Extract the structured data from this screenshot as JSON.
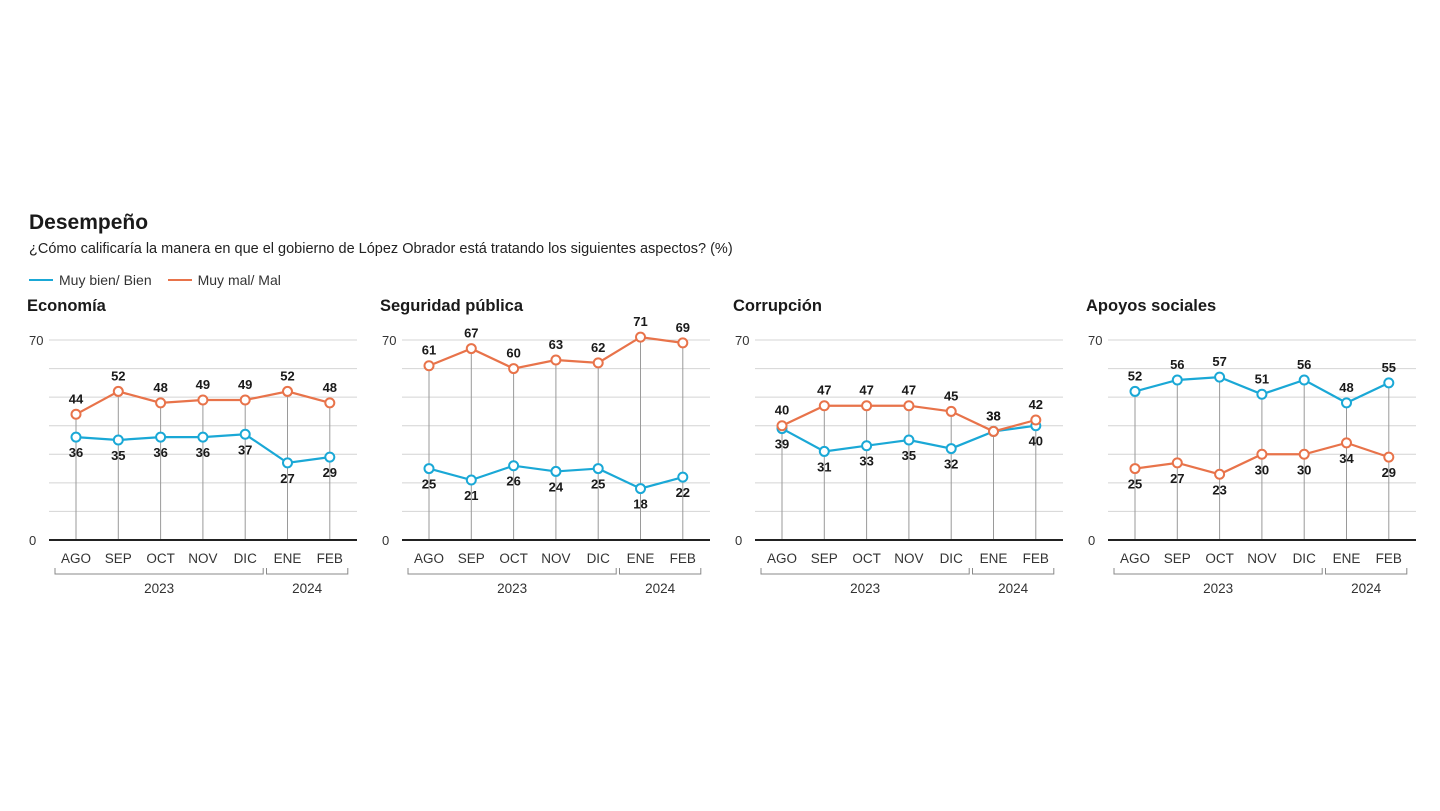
{
  "header": {
    "title": "Desempeño",
    "subtitle": "¿Cómo calificaría la manera en que el gobierno de López Obrador está tratando los siguientes aspectos? (%)"
  },
  "legend": [
    {
      "label": "Muy bien/ Bien",
      "color": "#1aa8d6"
    },
    {
      "label": "Muy mal/ Mal",
      "color": "#e8734a"
    }
  ],
  "colors": {
    "positive": "#1aa8d6",
    "negative": "#e8734a",
    "grid": "#d4d4d4",
    "axis": "#222222"
  },
  "chart_data": [
    {
      "type": "line",
      "title": "Economía",
      "categories": [
        "AGO",
        "SEP",
        "OCT",
        "NOV",
        "DIC",
        "ENE",
        "FEB"
      ],
      "year_groups": [
        {
          "label": "2023",
          "categories": [
            "AGO",
            "SEP",
            "OCT",
            "NOV",
            "DIC"
          ]
        },
        {
          "label": "2024",
          "categories": [
            "ENE",
            "FEB"
          ]
        }
      ],
      "ylim": [
        0,
        70
      ],
      "yticks": [
        "0",
        "70"
      ],
      "grid": true,
      "series": [
        {
          "name": "Muy bien/ Bien",
          "values": [
            36,
            35,
            36,
            36,
            37,
            27,
            29
          ]
        },
        {
          "name": "Muy mal/ Mal",
          "values": [
            44,
            52,
            48,
            49,
            49,
            52,
            48
          ]
        }
      ]
    },
    {
      "type": "line",
      "title": "Seguridad pública",
      "categories": [
        "AGO",
        "SEP",
        "OCT",
        "NOV",
        "DIC",
        "ENE",
        "FEB"
      ],
      "year_groups": [
        {
          "label": "2023",
          "categories": [
            "AGO",
            "SEP",
            "OCT",
            "NOV",
            "DIC"
          ]
        },
        {
          "label": "2024",
          "categories": [
            "ENE",
            "FEB"
          ]
        }
      ],
      "ylim": [
        0,
        70
      ],
      "yticks": [
        "0",
        "70"
      ],
      "grid": true,
      "series": [
        {
          "name": "Muy bien/ Bien",
          "values": [
            25,
            21,
            26,
            24,
            25,
            18,
            22
          ]
        },
        {
          "name": "Muy mal/ Mal",
          "values": [
            61,
            67,
            60,
            63,
            62,
            71,
            69
          ]
        }
      ]
    },
    {
      "type": "line",
      "title": "Corrupción",
      "categories": [
        "AGO",
        "SEP",
        "OCT",
        "NOV",
        "DIC",
        "ENE",
        "FEB"
      ],
      "year_groups": [
        {
          "label": "2023",
          "categories": [
            "AGO",
            "SEP",
            "OCT",
            "NOV",
            "DIC"
          ]
        },
        {
          "label": "2024",
          "categories": [
            "ENE",
            "FEB"
          ]
        }
      ],
      "ylim": [
        0,
        70
      ],
      "yticks": [
        "0",
        "70"
      ],
      "grid": true,
      "series": [
        {
          "name": "Muy bien/ Bien",
          "values": [
            39,
            31,
            33,
            35,
            32,
            38,
            40
          ]
        },
        {
          "name": "Muy mal/ Mal",
          "values": [
            40,
            47,
            47,
            47,
            45,
            38,
            42
          ]
        }
      ]
    },
    {
      "type": "line",
      "title": "Apoyos sociales",
      "categories": [
        "AGO",
        "SEP",
        "OCT",
        "NOV",
        "DIC",
        "ENE",
        "FEB"
      ],
      "year_groups": [
        {
          "label": "2023",
          "categories": [
            "AGO",
            "SEP",
            "OCT",
            "NOV",
            "DIC"
          ]
        },
        {
          "label": "2024",
          "categories": [
            "ENE",
            "FEB"
          ]
        }
      ],
      "ylim": [
        0,
        70
      ],
      "yticks": [
        "0",
        "70"
      ],
      "grid": true,
      "series": [
        {
          "name": "Muy bien/ Bien",
          "values": [
            52,
            56,
            57,
            51,
            56,
            48,
            55
          ]
        },
        {
          "name": "Muy mal/ Mal",
          "values": [
            25,
            27,
            23,
            30,
            30,
            34,
            29
          ]
        }
      ]
    }
  ]
}
